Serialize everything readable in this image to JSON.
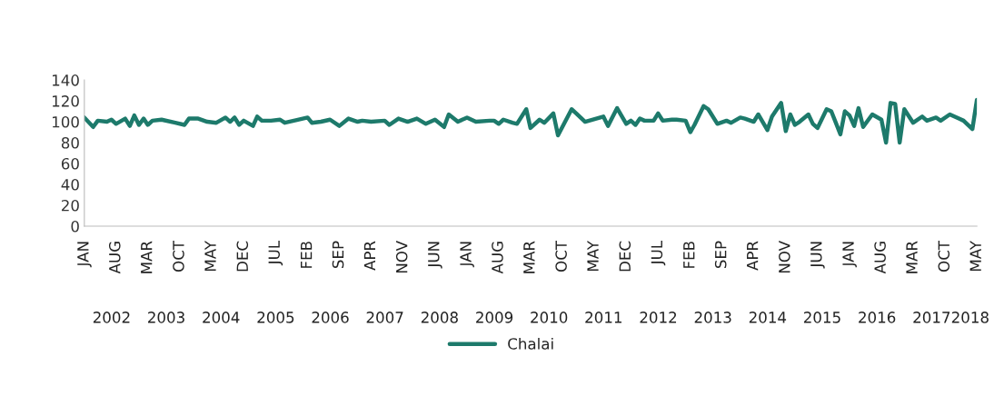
{
  "chart_data": {
    "type": "line",
    "x": [
      "2002-01",
      "2002-03",
      "2002-04",
      "2002-06",
      "2002-07",
      "2002-08",
      "2002-10",
      "2002-11",
      "2002-12",
      "2003-01",
      "2003-02",
      "2003-03",
      "2003-04",
      "2003-06",
      "2003-09",
      "2003-11",
      "2003-12",
      "2004-02",
      "2004-04",
      "2004-06",
      "2004-08",
      "2004-09",
      "2004-10",
      "2004-11",
      "2004-12",
      "2005-02",
      "2005-03",
      "2005-04",
      "2005-06",
      "2005-08",
      "2005-09",
      "2005-11",
      "2006-02",
      "2006-03",
      "2006-05",
      "2006-07",
      "2006-09",
      "2006-11",
      "2007-01",
      "2007-02",
      "2007-04",
      "2007-07",
      "2007-08",
      "2007-10",
      "2007-12",
      "2008-02",
      "2008-04",
      "2008-06",
      "2008-08",
      "2008-09",
      "2008-11",
      "2009-01",
      "2009-03",
      "2009-06",
      "2009-07",
      "2009-08",
      "2009-09",
      "2009-11",
      "2009-12",
      "2010-02",
      "2010-03",
      "2010-05",
      "2010-06",
      "2010-08",
      "2010-09",
      "2010-12",
      "2011-01",
      "2011-03",
      "2011-07",
      "2011-08",
      "2011-10",
      "2011-12",
      "2012-01",
      "2012-02",
      "2012-03",
      "2012-04",
      "2012-06",
      "2012-07",
      "2012-08",
      "2012-10",
      "2012-11",
      "2013-01",
      "2013-02",
      "2013-03",
      "2013-05",
      "2013-06",
      "2013-08",
      "2013-10",
      "2013-11",
      "2014-01",
      "2014-02",
      "2014-04",
      "2014-05",
      "2014-07",
      "2014-08",
      "2014-10",
      "2014-11",
      "2014-12",
      "2015-01",
      "2015-02",
      "2015-04",
      "2015-05",
      "2015-06",
      "2015-08",
      "2015-09",
      "2015-11",
      "2015-12",
      "2016-01",
      "2016-02",
      "2016-03",
      "2016-04",
      "2016-06",
      "2016-08",
      "2016-09",
      "2016-10",
      "2016-11",
      "2016-12",
      "2017-01",
      "2017-03",
      "2017-05",
      "2017-06",
      "2017-08",
      "2017-09",
      "2017-11",
      "2018-01",
      "2018-02",
      "2018-04",
      "2018-05"
    ],
    "series": [
      {
        "name": "Chalai",
        "color": "#1d7a6b",
        "values": [
          104,
          95,
          101,
          100,
          102,
          98,
          103,
          96,
          106,
          97,
          103,
          97,
          101,
          102,
          99,
          97,
          103,
          103,
          100,
          99,
          104,
          100,
          104,
          97,
          101,
          96,
          105,
          101,
          101,
          102,
          99,
          101,
          104,
          99,
          100,
          102,
          96,
          103,
          100,
          101,
          100,
          101,
          97,
          103,
          100,
          103,
          98,
          102,
          95,
          107,
          100,
          104,
          100,
          101,
          101,
          98,
          102,
          99,
          98,
          112,
          94,
          102,
          99,
          108,
          87,
          112,
          108,
          100,
          105,
          96,
          113,
          98,
          101,
          97,
          103,
          101,
          101,
          108,
          101,
          102,
          102,
          101,
          90,
          97,
          115,
          112,
          98,
          101,
          99,
          104,
          103,
          100,
          107,
          92,
          105,
          118,
          91,
          107,
          97,
          100,
          107,
          98,
          94,
          112,
          110,
          88,
          110,
          106,
          96,
          113,
          95,
          107,
          102,
          80,
          118,
          117,
          80,
          112,
          99,
          105,
          101,
          104,
          101,
          107,
          103,
          101,
          93,
          121
        ]
      }
    ],
    "xlim": [
      "2002-01",
      "2018-05"
    ],
    "xticks": [
      {
        "value": "2002-01",
        "label": "JAN"
      },
      {
        "value": "2002-08",
        "label": "AUG"
      },
      {
        "value": "2003-03",
        "label": "MAR"
      },
      {
        "value": "2003-10",
        "label": "OCT"
      },
      {
        "value": "2004-05",
        "label": "MAY"
      },
      {
        "value": "2004-12",
        "label": "DEC"
      },
      {
        "value": "2005-07",
        "label": "JUL"
      },
      {
        "value": "2006-02",
        "label": "FEB"
      },
      {
        "value": "2006-09",
        "label": "SEP"
      },
      {
        "value": "2007-04",
        "label": "APR"
      },
      {
        "value": "2007-11",
        "label": "NOV"
      },
      {
        "value": "2008-06",
        "label": "JUN"
      },
      {
        "value": "2009-01",
        "label": "JAN"
      },
      {
        "value": "2009-08",
        "label": "AUG"
      },
      {
        "value": "2010-03",
        "label": "MAR"
      },
      {
        "value": "2010-10",
        "label": "OCT"
      },
      {
        "value": "2011-05",
        "label": "MAY"
      },
      {
        "value": "2011-12",
        "label": "DEC"
      },
      {
        "value": "2012-07",
        "label": "JUL"
      },
      {
        "value": "2013-02",
        "label": "FEB"
      },
      {
        "value": "2013-09",
        "label": "SEP"
      },
      {
        "value": "2014-04",
        "label": "APR"
      },
      {
        "value": "2014-11",
        "label": "NOV"
      },
      {
        "value": "2015-06",
        "label": "JUN"
      },
      {
        "value": "2016-01",
        "label": "JAN"
      },
      {
        "value": "2016-08",
        "label": "AUG"
      },
      {
        "value": "2017-03",
        "label": "MAR"
      },
      {
        "value": "2017-10",
        "label": "OCT"
      },
      {
        "value": "2018-05",
        "label": "MAY"
      }
    ],
    "ylim": [
      0,
      140
    ],
    "yticks": [
      0,
      20,
      40,
      60,
      80,
      100,
      120,
      140
    ],
    "annotations": [
      "2002",
      "2003",
      "2004",
      "2005",
      "2006",
      "2007",
      "2008",
      "2009",
      "2010",
      "2011",
      "2012",
      "2013",
      "2014",
      "2015",
      "2016",
      "2017",
      "2018"
    ],
    "legend": "bottom",
    "marker": "none",
    "line_style": "solid"
  }
}
